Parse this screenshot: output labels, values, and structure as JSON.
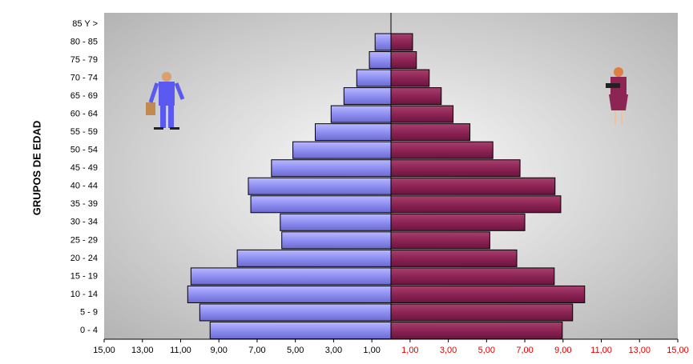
{
  "chart_data": {
    "type": "pyramid",
    "y_axis_label": "GRUPOS DE EDAD",
    "categories": [
      "0 - 4",
      "5 - 9",
      "10 - 14",
      "15 - 19",
      "20 - 24",
      "25 - 29",
      "30 - 34",
      "35 - 39",
      "40 - 44",
      "45 - 49",
      "50 - 54",
      "55 - 59",
      "60 - 64",
      "65 - 69",
      "70 - 74",
      "75 - 79",
      "80 - 85",
      "85 Y >"
    ],
    "series": [
      {
        "side": "left",
        "color": "#8f8ff2",
        "values": [
          9.46,
          10.0,
          10.63,
          10.46,
          8.04,
          5.71,
          5.79,
          7.33,
          7.46,
          6.25,
          5.13,
          3.96,
          3.13,
          2.46,
          1.79,
          1.13,
          0.83,
          0
        ]
      },
      {
        "side": "right",
        "color": "#8c2454",
        "values": [
          8.96,
          9.5,
          10.13,
          8.54,
          6.58,
          5.17,
          7.0,
          8.88,
          8.58,
          6.75,
          5.33,
          4.13,
          3.25,
          2.63,
          2.0,
          1.33,
          1.13,
          0
        ]
      }
    ],
    "xlim": [
      0,
      15
    ],
    "left_xticks": [
      {
        "value": 15,
        "label": "15,00"
      },
      {
        "value": 13,
        "label": "13,00"
      },
      {
        "value": 11,
        "label": "11,00"
      },
      {
        "value": 9,
        "label": "9,00"
      },
      {
        "value": 7,
        "label": "7,00"
      },
      {
        "value": 5,
        "label": "5,00"
      },
      {
        "value": 3,
        "label": "3,00"
      },
      {
        "value": 1,
        "label": "1,00"
      }
    ],
    "right_xticks": [
      {
        "value": 1,
        "label": "1,00"
      },
      {
        "value": 3,
        "label": "3,00"
      },
      {
        "value": 5,
        "label": "5,00"
      },
      {
        "value": 7,
        "label": "7,00"
      },
      {
        "value": 9,
        "label": "9,00"
      },
      {
        "value": 11,
        "label": "11,00"
      },
      {
        "value": 13,
        "label": "13,00"
      },
      {
        "value": 15,
        "label": "15,00"
      }
    ],
    "left_tick_color": "#000000",
    "right_tick_color": "#e00000"
  }
}
